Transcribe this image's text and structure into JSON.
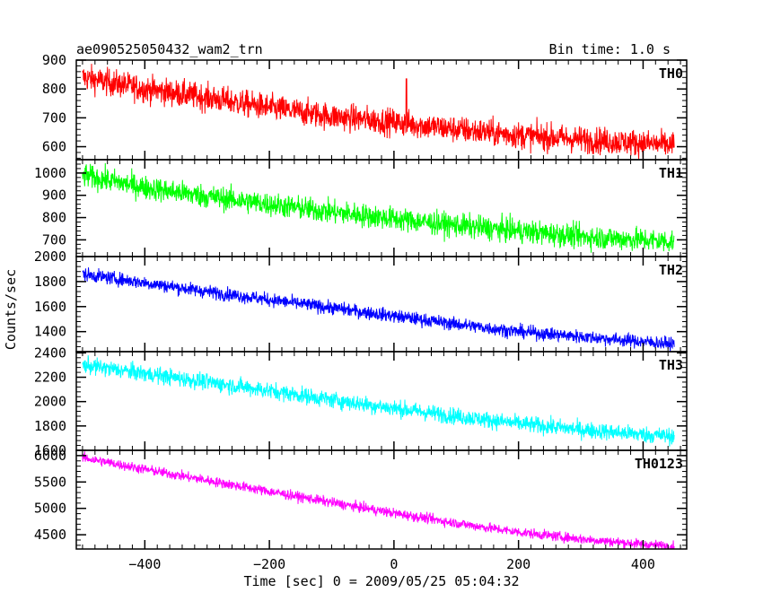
{
  "chart_data": {
    "type": "line",
    "title": "ae090525050432_wam2_trn",
    "subtitle": "Bin time: 1.0 s",
    "xlabel": "Time [sec] 0 = 2009/05/25 05:04:32",
    "ylabel": "Counts/sec",
    "xlim": [
      -510,
      470
    ],
    "x_ticks": [
      -400,
      -200,
      0,
      200,
      400
    ],
    "x_tick_labels": [
      "−400",
      "−200",
      "0",
      "200",
      "400"
    ],
    "x_range": [
      -500,
      450
    ],
    "bin_time": 1.0,
    "grid": false,
    "panels": [
      {
        "name": "TH0",
        "color": "#ff0000",
        "ylim": [
          555,
          900
        ],
        "yticks": [
          600,
          700,
          800,
          900
        ],
        "trend": [
          [
            -500,
            840
          ],
          [
            -400,
            800
          ],
          [
            -300,
            770
          ],
          [
            -200,
            735
          ],
          [
            -100,
            705
          ],
          [
            0,
            685
          ],
          [
            100,
            660
          ],
          [
            200,
            640
          ],
          [
            300,
            625
          ],
          [
            400,
            612
          ],
          [
            450,
            605
          ]
        ],
        "noise_amplitude": 42,
        "spikes": [
          [
            20,
            835
          ]
        ]
      },
      {
        "name": "TH1",
        "color": "#00ff00",
        "ylim": [
          625,
          1060
        ],
        "yticks": [
          700,
          800,
          900,
          1000
        ],
        "trend": [
          [
            -500,
            990
          ],
          [
            -400,
            935
          ],
          [
            -300,
            895
          ],
          [
            -200,
            860
          ],
          [
            -100,
            825
          ],
          [
            0,
            795
          ],
          [
            100,
            765
          ],
          [
            200,
            740
          ],
          [
            300,
            715
          ],
          [
            400,
            700
          ],
          [
            450,
            692
          ]
        ],
        "noise_amplitude": 48,
        "spikes": []
      },
      {
        "name": "TH2",
        "color": "#0000ff",
        "ylim": [
          1240,
          2000
        ],
        "yticks": [
          1400,
          1600,
          1800,
          2000
        ],
        "trend": [
          [
            -500,
            1860
          ],
          [
            -400,
            1790
          ],
          [
            -300,
            1720
          ],
          [
            -200,
            1655
          ],
          [
            -100,
            1590
          ],
          [
            0,
            1525
          ],
          [
            100,
            1460
          ],
          [
            200,
            1400
          ],
          [
            300,
            1360
          ],
          [
            400,
            1320
          ],
          [
            450,
            1300
          ]
        ],
        "noise_amplitude": 48,
        "spikes": []
      },
      {
        "name": "TH3",
        "color": "#00ffff",
        "ylim": [
          1600,
          2410
        ],
        "yticks": [
          1600,
          1800,
          2000,
          2200,
          2400
        ],
        "trend": [
          [
            -500,
            2300
          ],
          [
            -400,
            2230
          ],
          [
            -300,
            2160
          ],
          [
            -200,
            2090
          ],
          [
            -100,
            2015
          ],
          [
            0,
            1945
          ],
          [
            100,
            1880
          ],
          [
            200,
            1820
          ],
          [
            300,
            1770
          ],
          [
            400,
            1730
          ],
          [
            450,
            1715
          ]
        ],
        "noise_amplitude": 62,
        "spikes": []
      },
      {
        "name": "TH0123",
        "color": "#ff00ff",
        "ylim": [
          4230,
          6100
        ],
        "yticks": [
          4500,
          5000,
          5500,
          6000
        ],
        "trend": [
          [
            -500,
            5960
          ],
          [
            -400,
            5740
          ],
          [
            -300,
            5530
          ],
          [
            -200,
            5320
          ],
          [
            -100,
            5110
          ],
          [
            0,
            4910
          ],
          [
            100,
            4720
          ],
          [
            200,
            4550
          ],
          [
            300,
            4420
          ],
          [
            400,
            4320
          ],
          [
            450,
            4280
          ]
        ],
        "noise_amplitude": 85,
        "spikes": []
      }
    ]
  }
}
